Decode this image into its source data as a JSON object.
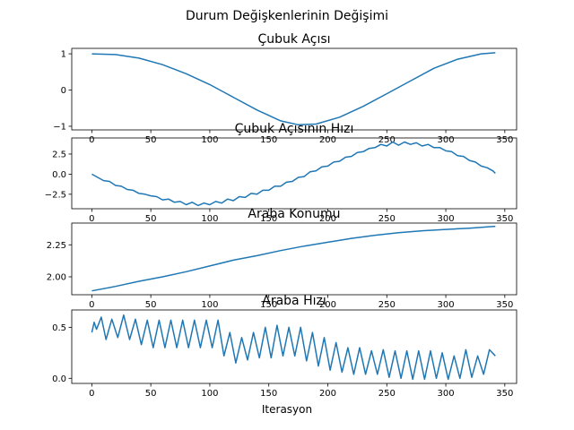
{
  "figure": {
    "suptitle": "Durum Değişkenlerinin Değişimi",
    "xlabel": "Iterasyon"
  },
  "style": {
    "line_color": "#1f77b4",
    "axis_color": "#000000"
  },
  "chart_data": [
    {
      "type": "line",
      "title": "Çubuk Açısı",
      "xlim": [
        -17,
        360
      ],
      "ylim": [
        -1.1,
        1.15
      ],
      "xticks": [
        0,
        50,
        100,
        150,
        200,
        250,
        300,
        350
      ],
      "yticks": [
        {
          "v": 1,
          "label": "1"
        },
        {
          "v": 0,
          "label": "0"
        },
        {
          "v": -1,
          "label": "−1"
        }
      ],
      "x": [
        0,
        20,
        40,
        60,
        80,
        100,
        120,
        140,
        160,
        175,
        190,
        210,
        230,
        250,
        270,
        290,
        310,
        330,
        342
      ],
      "y": [
        1.0,
        0.98,
        0.88,
        0.7,
        0.45,
        0.15,
        -0.2,
        -0.55,
        -0.85,
        -0.96,
        -0.94,
        -0.75,
        -0.45,
        -0.1,
        0.25,
        0.6,
        0.85,
        1.0,
        1.03
      ]
    },
    {
      "type": "line",
      "title": "Çubuk Açısının Hızı",
      "xlim": [
        -17,
        360
      ],
      "ylim": [
        -4.3,
        4.5
      ],
      "xticks": [
        0,
        50,
        100,
        150,
        200,
        250,
        300,
        350
      ],
      "yticks": [
        {
          "v": 2.5,
          "label": "2.5"
        },
        {
          "v": 0,
          "label": "0.0"
        },
        {
          "v": -2.5,
          "label": "−2.5"
        }
      ],
      "x": [
        0,
        5,
        10,
        15,
        20,
        25,
        30,
        35,
        40,
        45,
        50,
        55,
        60,
        65,
        70,
        75,
        80,
        85,
        90,
        95,
        100,
        105,
        110,
        115,
        120,
        125,
        130,
        135,
        140,
        145,
        150,
        155,
        160,
        165,
        170,
        175,
        180,
        185,
        190,
        195,
        200,
        205,
        210,
        215,
        220,
        225,
        230,
        235,
        240,
        245,
        250,
        255,
        260,
        265,
        270,
        275,
        280,
        285,
        290,
        295,
        300,
        305,
        310,
        315,
        320,
        325,
        330,
        335,
        340,
        342
      ],
      "y": [
        0.0,
        -0.4,
        -0.8,
        -0.9,
        -1.4,
        -1.5,
        -1.9,
        -2.0,
        -2.4,
        -2.5,
        -2.7,
        -2.8,
        -3.2,
        -3.1,
        -3.5,
        -3.4,
        -3.8,
        -3.5,
        -3.9,
        -3.6,
        -3.8,
        -3.4,
        -3.6,
        -3.1,
        -3.3,
        -2.8,
        -2.9,
        -2.4,
        -2.5,
        -2.0,
        -2.0,
        -1.5,
        -1.5,
        -1.0,
        -0.9,
        -0.4,
        -0.3,
        0.3,
        0.4,
        0.9,
        1.0,
        1.5,
        1.6,
        2.1,
        2.2,
        2.7,
        2.8,
        3.2,
        3.3,
        3.7,
        3.5,
        4.0,
        3.6,
        4.0,
        3.7,
        3.9,
        3.5,
        3.7,
        3.3,
        3.3,
        2.9,
        2.8,
        2.3,
        2.2,
        1.7,
        1.5,
        1.0,
        0.8,
        0.4,
        0.1
      ]
    },
    {
      "type": "line",
      "title": "Araba Konumu",
      "xlim": [
        -17,
        360
      ],
      "ylim": [
        1.86,
        2.42
      ],
      "xticks": [
        0,
        50,
        100,
        150,
        200,
        250,
        300,
        350
      ],
      "yticks": [
        {
          "v": 2.25,
          "label": "2.25"
        },
        {
          "v": 2.0,
          "label": "2.00"
        }
      ],
      "x": [
        0,
        20,
        40,
        60,
        80,
        100,
        120,
        140,
        160,
        180,
        200,
        220,
        240,
        260,
        280,
        300,
        320,
        342
      ],
      "y": [
        1.89,
        1.925,
        1.965,
        2.0,
        2.04,
        2.085,
        2.13,
        2.165,
        2.205,
        2.24,
        2.27,
        2.3,
        2.325,
        2.345,
        2.36,
        2.37,
        2.38,
        2.395
      ]
    },
    {
      "type": "line",
      "title": "Araba Hızı",
      "xlim": [
        -17,
        360
      ],
      "ylim": [
        -0.05,
        0.67
      ],
      "xticks": [
        0,
        50,
        100,
        150,
        200,
        250,
        300,
        350
      ],
      "yticks": [
        {
          "v": 0.5,
          "label": "0.5"
        },
        {
          "v": 0.0,
          "label": "0.0"
        }
      ],
      "x": [
        0,
        2,
        4,
        6,
        8,
        12,
        17,
        22,
        27,
        32,
        37,
        42,
        47,
        52,
        57,
        62,
        67,
        72,
        77,
        82,
        87,
        92,
        97,
        102,
        107,
        112,
        117,
        122,
        127,
        132,
        137,
        142,
        147,
        152,
        157,
        162,
        167,
        172,
        177,
        182,
        187,
        192,
        197,
        202,
        207,
        212,
        217,
        222,
        227,
        232,
        237,
        242,
        247,
        252,
        257,
        262,
        267,
        272,
        277,
        282,
        287,
        292,
        297,
        302,
        307,
        312,
        317,
        322,
        327,
        332,
        337,
        342
      ],
      "y": [
        0.45,
        0.55,
        0.48,
        0.54,
        0.6,
        0.38,
        0.58,
        0.4,
        0.62,
        0.38,
        0.58,
        0.33,
        0.57,
        0.3,
        0.57,
        0.3,
        0.57,
        0.3,
        0.57,
        0.3,
        0.57,
        0.3,
        0.57,
        0.3,
        0.57,
        0.22,
        0.45,
        0.15,
        0.4,
        0.18,
        0.45,
        0.2,
        0.5,
        0.2,
        0.52,
        0.22,
        0.5,
        0.22,
        0.5,
        0.17,
        0.45,
        0.12,
        0.4,
        0.08,
        0.35,
        0.06,
        0.3,
        0.04,
        0.3,
        0.04,
        0.27,
        0.04,
        0.28,
        0.01,
        0.27,
        0.0,
        0.27,
        -0.01,
        0.27,
        -0.01,
        0.27,
        0.0,
        0.25,
        -0.01,
        0.22,
        0.0,
        0.28,
        0.01,
        0.22,
        0.04,
        0.28,
        0.22
      ]
    }
  ]
}
